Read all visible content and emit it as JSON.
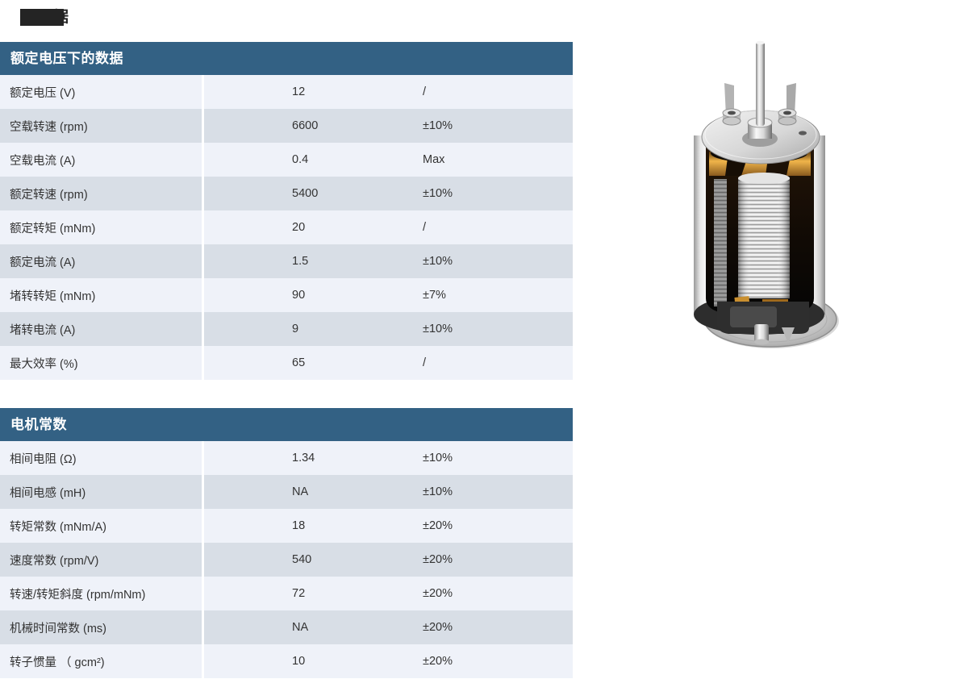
{
  "page": {
    "title_fragment": "据"
  },
  "tables": [
    {
      "title": "额定电压下的数据",
      "rows": [
        {
          "label": "额定电压  (V)",
          "value": "12",
          "tolerance": "/"
        },
        {
          "label": "空载转速  (rpm)",
          "value": "6600",
          "tolerance": "±10%"
        },
        {
          "label": "空载电流  (A)",
          "value": "0.4",
          "tolerance": "Max"
        },
        {
          "label": "额定转速  (rpm)",
          "value": "5400",
          "tolerance": "±10%"
        },
        {
          "label": "额定转矩  (mNm)",
          "value": "20",
          "tolerance": "/"
        },
        {
          "label": "额定电流  (A)",
          "value": "1.5",
          "tolerance": "±10%"
        },
        {
          "label": "堵转转矩  (mNm)",
          "value": "90",
          "tolerance": "±7%"
        },
        {
          "label": "堵转电流  (A)",
          "value": "9",
          "tolerance": "±10%"
        },
        {
          "label": "最大效率  (%)",
          "value": "65",
          "tolerance": "/"
        }
      ]
    },
    {
      "title": "电机常数",
      "rows": [
        {
          "label": "相间电阻  (Ω)",
          "value": "1.34",
          "tolerance": "±10%"
        },
        {
          "label": "相间电感  (mH)",
          "value": "NA",
          "tolerance": "±10%"
        },
        {
          "label": "转矩常数  (mNm/A)",
          "value": "18",
          "tolerance": "±20%"
        },
        {
          "label": "速度常数  (rpm/V)",
          "value": "540",
          "tolerance": "±20%"
        },
        {
          "label": "转速/转矩斜度 (rpm/mNm)",
          "value": "72",
          "tolerance": "±20%"
        },
        {
          "label": "机械时间常数  (ms)",
          "value": "NA",
          "tolerance": "±20%"
        },
        {
          "label": "转子惯量  （ gcm²)",
          "value": "10",
          "tolerance": "±20%"
        }
      ]
    }
  ],
  "colors": {
    "header_bg": "#336184",
    "row_light": "#eff2f9",
    "row_dark": "#d8dee6",
    "header_text": "#ffffff",
    "cell_text": "#333333",
    "title_redact": "#242424"
  },
  "figure": {
    "name": "motor-cutaway-image",
    "description": "电机剖视产品图"
  }
}
